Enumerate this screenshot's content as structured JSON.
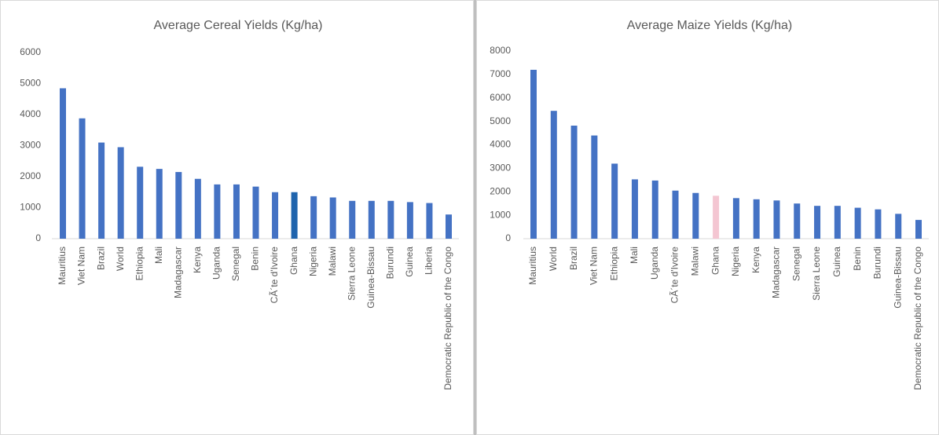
{
  "chart_data": [
    {
      "type": "bar",
      "title": "Average Cereal Yields (Kg/ha)",
      "categories": [
        "Mauritius",
        "Viet Nam",
        "Brazil",
        "World",
        "Ethiopia",
        "Mali",
        "Madagascar",
        "Kenya",
        "Uganda",
        "Senegal",
        "Benin",
        "CÃ´te d'Ivoire",
        "Ghana",
        "Nigeria",
        "Malawi",
        "Sierra Leone",
        "Guinea-Bissau",
        "Burundi",
        "Guinea",
        "Liberia",
        "Democratic Republic of the Congo"
      ],
      "values": [
        4850,
        3880,
        3100,
        2950,
        2320,
        2250,
        2150,
        1930,
        1750,
        1750,
        1680,
        1500,
        1500,
        1370,
        1330,
        1220,
        1220,
        1220,
        1180,
        1150,
        780
      ],
      "colors": [
        "#4472c4",
        "#4472c4",
        "#4472c4",
        "#4472c4",
        "#4472c4",
        "#4472c4",
        "#4472c4",
        "#4472c4",
        "#4472c4",
        "#4472c4",
        "#4472c4",
        "#4472c4",
        "#1f64ad",
        "#4472c4",
        "#4472c4",
        "#4472c4",
        "#4472c4",
        "#4472c4",
        "#4472c4",
        "#4472c4",
        "#4472c4"
      ],
      "ylim": [
        0,
        6000
      ],
      "yticks": [
        0,
        1000,
        2000,
        3000,
        4000,
        5000,
        6000
      ]
    },
    {
      "type": "bar",
      "title": "Average Maize Yields (Kg/ha)",
      "categories": [
        "Mauritius",
        "World",
        "Brazil",
        "Viet Nam",
        "Ethiopia",
        "Mali",
        "Uganda",
        "CÃ´te d'Ivoire",
        "Malawi",
        "Ghana",
        "Nigeria",
        "Kenya",
        "Madagascar",
        "Senegal",
        "Sierra Leone",
        "Guinea",
        "Benin",
        "Burundi",
        "Guinea-Bissau",
        "Democratic Republic of the Congo"
      ],
      "values": [
        7200,
        5450,
        4820,
        4400,
        3200,
        2530,
        2480,
        2050,
        1950,
        1830,
        1730,
        1680,
        1630,
        1500,
        1400,
        1400,
        1320,
        1250,
        1060,
        800
      ],
      "colors": [
        "#4472c4",
        "#4472c4",
        "#4472c4",
        "#4472c4",
        "#4472c4",
        "#4472c4",
        "#4472c4",
        "#4472c4",
        "#4472c4",
        "#f4c6d2",
        "#4472c4",
        "#4472c4",
        "#4472c4",
        "#4472c4",
        "#4472c4",
        "#4472c4",
        "#4472c4",
        "#4472c4",
        "#4472c4",
        "#4472c4"
      ],
      "ylim": [
        0,
        8000
      ],
      "yticks": [
        0,
        1000,
        2000,
        3000,
        4000,
        5000,
        6000,
        7000,
        8000
      ]
    }
  ]
}
